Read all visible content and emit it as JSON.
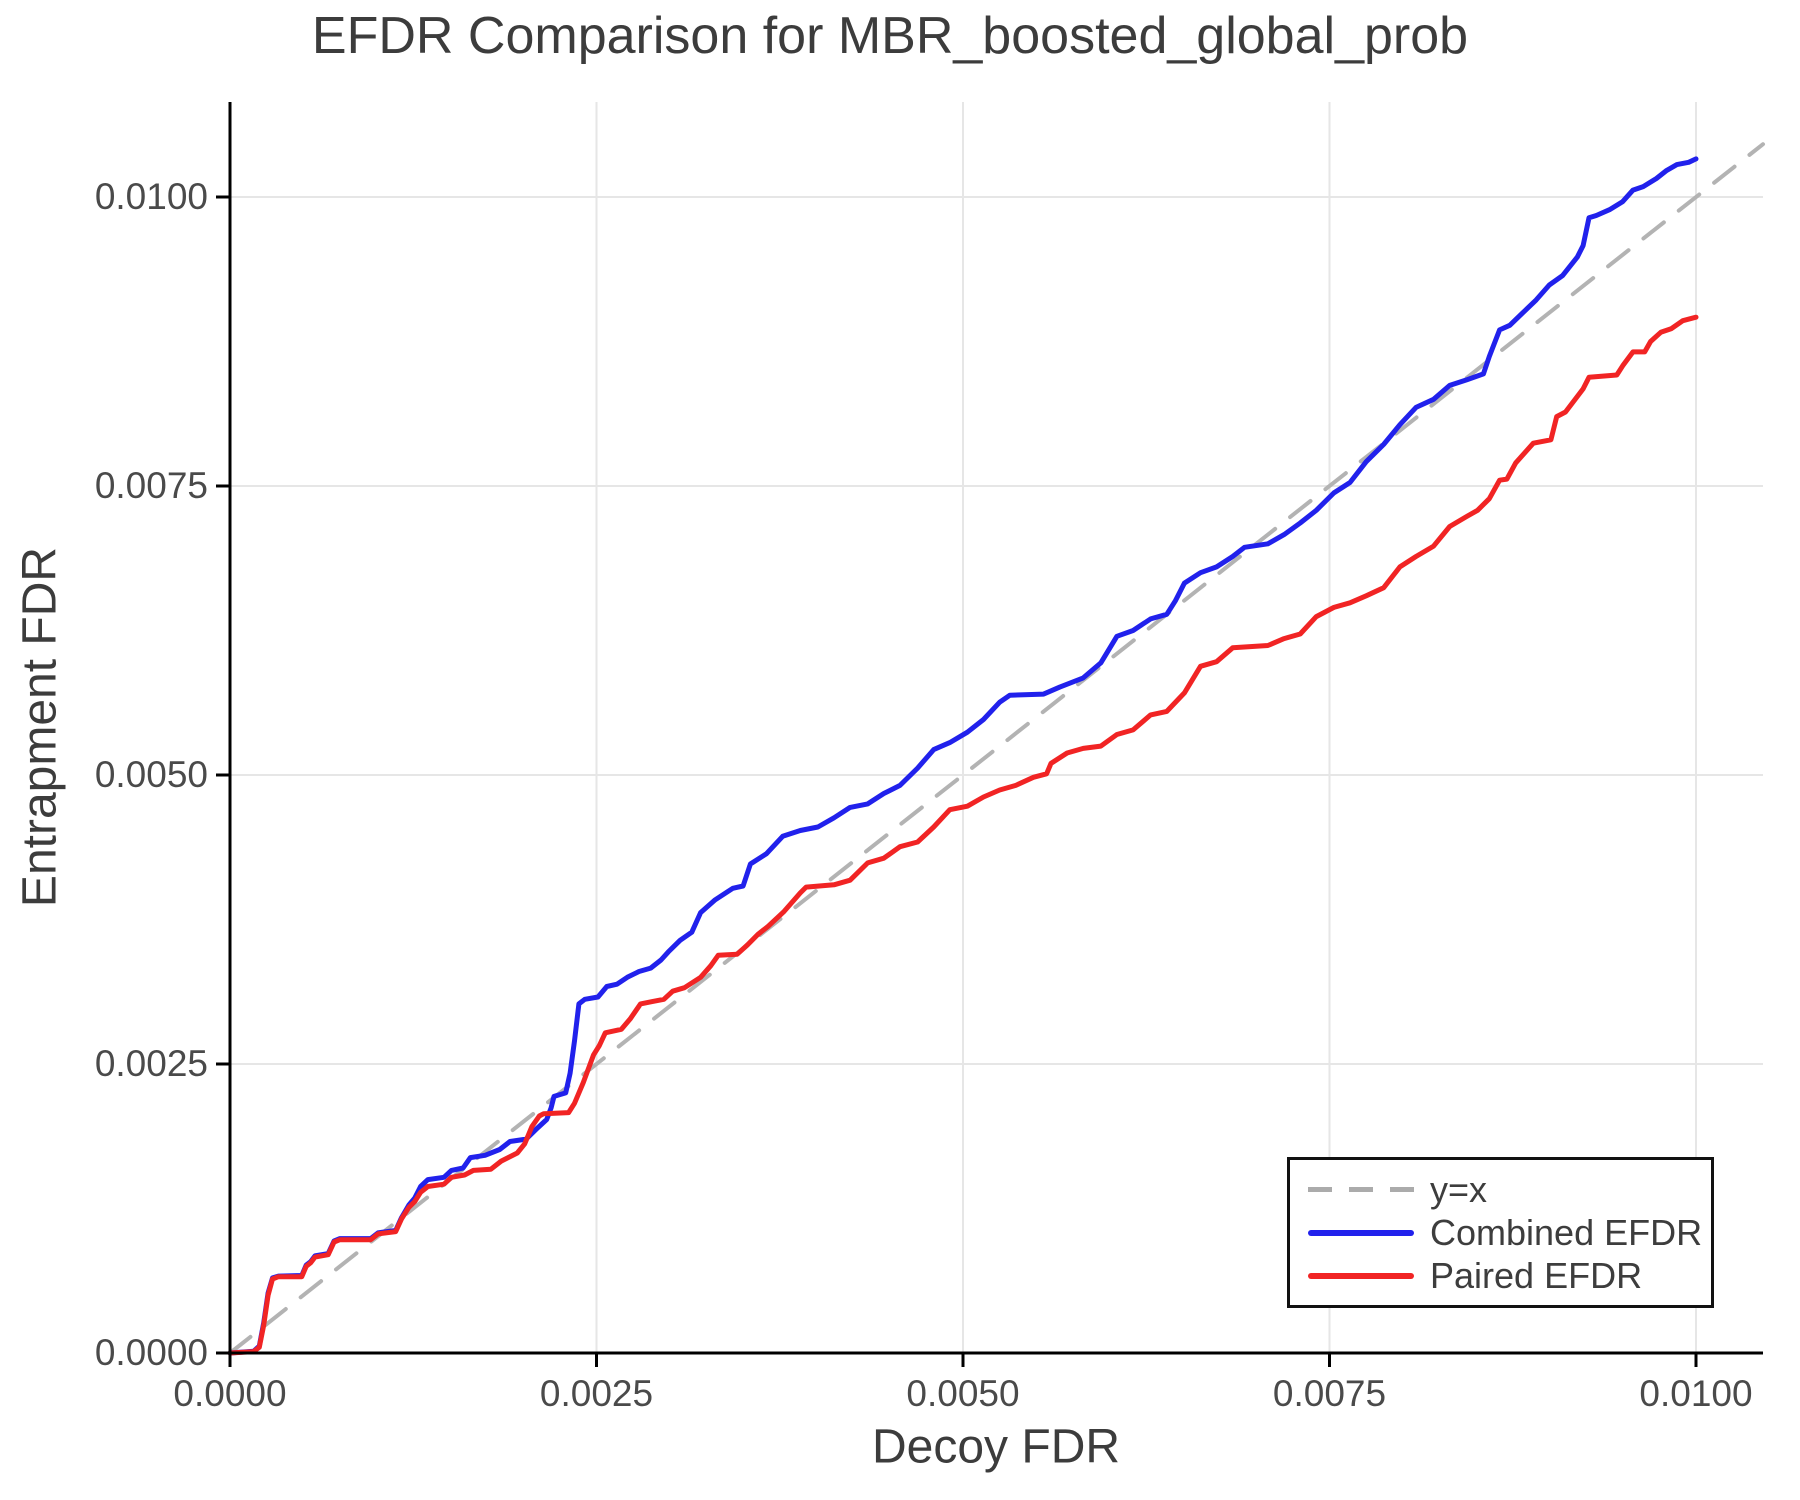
{
  "title": "EFDR Comparison for MBR_boosted_global_prob",
  "axes": {
    "xlabel": "Decoy FDR",
    "ylabel": "Entrapment FDR"
  },
  "legend": {
    "items": [
      {
        "label": "y=x",
        "color": "#ababab",
        "style": "dashed"
      },
      {
        "label": "Combined EFDR",
        "color": "#2121ec",
        "style": "solid"
      },
      {
        "label": "Paired EFDR",
        "color": "#f12424",
        "style": "solid"
      }
    ]
  },
  "colors": {
    "blue_line": "#2121ec",
    "red_line": "#f12424",
    "identity_line": "#b3b3b3",
    "grid": "#e6e6e6",
    "spine": "#000000",
    "title_text": "#3c3c3c",
    "tick_text": "#4a4a4a"
  },
  "chart_data": {
    "type": "line",
    "title": "EFDR Comparison for MBR_boosted_global_prob",
    "xlabel": "Decoy FDR",
    "ylabel": "Entrapment FDR",
    "xlim": [
      0,
      0.01046
    ],
    "ylim": [
      0,
      0.01082
    ],
    "grid": true,
    "legend_position": "bottom-right",
    "x_ticks": {
      "values": [
        0,
        0.0025,
        0.005,
        0.0075,
        0.01
      ],
      "labels": [
        "0.0000",
        "0.0025",
        "0.0050",
        "0.0075",
        "0.0100"
      ]
    },
    "y_ticks": {
      "values": [
        0,
        0.0025,
        0.005,
        0.0075,
        0.01
      ],
      "labels": [
        "0.0000",
        "0.0025",
        "0.0050",
        "0.0075",
        "0.0100"
      ]
    },
    "series": [
      {
        "name": "y=x",
        "style": "dashed",
        "color": "#b3b3b3",
        "points": [
          [
            0,
            0
          ],
          [
            0.010457,
            0.010457
          ]
        ]
      },
      {
        "name": "Combined EFDR",
        "style": "solid",
        "color": "#2121ec",
        "points": [
          [
            0,
            0
          ],
          [
            0.00016,
            1.5e-05
          ],
          [
            0.0002,
            6e-05
          ],
          [
            0.00023,
            0.00026
          ],
          [
            0.00026,
            0.00052
          ],
          [
            0.00029,
            0.00065
          ],
          [
            0.00033,
            0.000665
          ],
          [
            0.00049,
            0.00067
          ],
          [
            0.00052,
            0.00076
          ],
          [
            0.00055,
            0.00079
          ],
          [
            0.00058,
            0.00084
          ],
          [
            0.00067,
            0.00086
          ],
          [
            0.00071,
            0.00097
          ],
          [
            0.00075,
            0.00099
          ],
          [
            0.00096,
            0.00099
          ],
          [
            0.00101,
            0.00104
          ],
          [
            0.00113,
            0.00106
          ],
          [
            0.00117,
            0.00117
          ],
          [
            0.00122,
            0.00128
          ],
          [
            0.00126,
            0.00134
          ],
          [
            0.0013,
            0.00144
          ],
          [
            0.00135,
            0.0015
          ],
          [
            0.00146,
            0.00152
          ],
          [
            0.00151,
            0.00158
          ],
          [
            0.00159,
            0.0016
          ],
          [
            0.00164,
            0.00169
          ],
          [
            0.00174,
            0.00171
          ],
          [
            0.00184,
            0.00176
          ],
          [
            0.00191,
            0.00183
          ],
          [
            0.00202,
            0.00185
          ],
          [
            0.0021,
            0.00195
          ],
          [
            0.00216,
            0.00202
          ],
          [
            0.00219,
            0.00212
          ],
          [
            0.00221,
            0.00222
          ],
          [
            0.00229,
            0.00225
          ],
          [
            0.00232,
            0.00242
          ],
          [
            0.00235,
            0.0027
          ],
          [
            0.00238,
            0.00302
          ],
          [
            0.00242,
            0.00306
          ],
          [
            0.00251,
            0.00308
          ],
          [
            0.00257,
            0.00317
          ],
          [
            0.00264,
            0.00319
          ],
          [
            0.00271,
            0.00325
          ],
          [
            0.00279,
            0.0033
          ],
          [
            0.00287,
            0.00333
          ],
          [
            0.00294,
            0.0034
          ],
          [
            0.00299,
            0.00347
          ],
          [
            0.00307,
            0.00357
          ],
          [
            0.00315,
            0.00364
          ],
          [
            0.00321,
            0.00381
          ],
          [
            0.00331,
            0.00392
          ],
          [
            0.00343,
            0.00402
          ],
          [
            0.0035,
            0.00404
          ],
          [
            0.00355,
            0.00423
          ],
          [
            0.00366,
            0.00432
          ],
          [
            0.00377,
            0.00447
          ],
          [
            0.00389,
            0.00452
          ],
          [
            0.00401,
            0.00455
          ],
          [
            0.00412,
            0.00463
          ],
          [
            0.00423,
            0.00472
          ],
          [
            0.00435,
            0.00475
          ],
          [
            0.00446,
            0.00484
          ],
          [
            0.00457,
            0.00491
          ],
          [
            0.00469,
            0.00506
          ],
          [
            0.0048,
            0.00522
          ],
          [
            0.00491,
            0.00528
          ],
          [
            0.00503,
            0.00537
          ],
          [
            0.00514,
            0.00548
          ],
          [
            0.00525,
            0.00563
          ],
          [
            0.00532,
            0.00569
          ],
          [
            0.00555,
            0.0057
          ],
          [
            0.00566,
            0.00576
          ],
          [
            0.00582,
            0.00584
          ],
          [
            0.00594,
            0.00597
          ],
          [
            0.00605,
            0.0062
          ],
          [
            0.00616,
            0.00625
          ],
          [
            0.00628,
            0.00635
          ],
          [
            0.00639,
            0.00639
          ],
          [
            0.00645,
            0.00651
          ],
          [
            0.00651,
            0.00666
          ],
          [
            0.00662,
            0.00675
          ],
          [
            0.00673,
            0.0068
          ],
          [
            0.00684,
            0.00689
          ],
          [
            0.00692,
            0.00697
          ],
          [
            0.00708,
            0.007
          ],
          [
            0.00719,
            0.00708
          ],
          [
            0.0073,
            0.00718
          ],
          [
            0.00741,
            0.00729
          ],
          [
            0.00753,
            0.00744
          ],
          [
            0.00764,
            0.00753
          ],
          [
            0.00775,
            0.00771
          ],
          [
            0.00787,
            0.00786
          ],
          [
            0.00798,
            0.00803
          ],
          [
            0.00809,
            0.00818
          ],
          [
            0.00821,
            0.00825
          ],
          [
            0.00832,
            0.00837
          ],
          [
            0.00844,
            0.00842
          ],
          [
            0.00855,
            0.00847
          ],
          [
            0.00859,
            0.00862
          ],
          [
            0.00866,
            0.00885
          ],
          [
            0.00873,
            0.00889
          ],
          [
            0.00882,
            0.009
          ],
          [
            0.00891,
            0.00911
          ],
          [
            0.009,
            0.00924
          ],
          [
            0.00909,
            0.00932
          ],
          [
            0.00919,
            0.00948
          ],
          [
            0.00923,
            0.00958
          ],
          [
            0.00927,
            0.00982
          ],
          [
            0.00932,
            0.00984
          ],
          [
            0.00941,
            0.00989
          ],
          [
            0.0095,
            0.00996
          ],
          [
            0.00957,
            0.01006
          ],
          [
            0.00964,
            0.01009
          ],
          [
            0.00973,
            0.01016
          ],
          [
            0.0098,
            0.01023
          ],
          [
            0.00987,
            0.01028
          ],
          [
            0.00995,
            0.0103
          ],
          [
            0.01,
            0.01033
          ]
        ]
      },
      {
        "name": "Paired EFDR",
        "style": "solid",
        "color": "#f12424",
        "points": [
          [
            0,
            0
          ],
          [
            0.00016,
            1.2e-05
          ],
          [
            0.0002,
            5e-05
          ],
          [
            0.00023,
            0.00024
          ],
          [
            0.00026,
            0.0005
          ],
          [
            0.00029,
            0.00064
          ],
          [
            0.00033,
            0.00066
          ],
          [
            0.00049,
            0.00066
          ],
          [
            0.00052,
            0.00075
          ],
          [
            0.00055,
            0.00078
          ],
          [
            0.00058,
            0.00083
          ],
          [
            0.00067,
            0.00085
          ],
          [
            0.00071,
            0.00096
          ],
          [
            0.00075,
            0.00098
          ],
          [
            0.00096,
            0.00098
          ],
          [
            0.00101,
            0.00103
          ],
          [
            0.00113,
            0.00105
          ],
          [
            0.00117,
            0.00116
          ],
          [
            0.00122,
            0.00126
          ],
          [
            0.00126,
            0.00131
          ],
          [
            0.0013,
            0.00139
          ],
          [
            0.00135,
            0.00144
          ],
          [
            0.00146,
            0.00146
          ],
          [
            0.00151,
            0.00152
          ],
          [
            0.0016,
            0.00154
          ],
          [
            0.00166,
            0.00158
          ],
          [
            0.00178,
            0.00159
          ],
          [
            0.00185,
            0.00166
          ],
          [
            0.00196,
            0.00173
          ],
          [
            0.00201,
            0.00181
          ],
          [
            0.00206,
            0.00196
          ],
          [
            0.00211,
            0.00205
          ],
          [
            0.00214,
            0.00207
          ],
          [
            0.00231,
            0.00208
          ],
          [
            0.00235,
            0.00216
          ],
          [
            0.00241,
            0.00234
          ],
          [
            0.00248,
            0.00258
          ],
          [
            0.00252,
            0.00266
          ],
          [
            0.00256,
            0.00277
          ],
          [
            0.00267,
            0.0028
          ],
          [
            0.00273,
            0.00289
          ],
          [
            0.0028,
            0.00302
          ],
          [
            0.00288,
            0.00304
          ],
          [
            0.00296,
            0.00306
          ],
          [
            0.00302,
            0.00313
          ],
          [
            0.0031,
            0.00316
          ],
          [
            0.00321,
            0.00325
          ],
          [
            0.00328,
            0.00335
          ],
          [
            0.00333,
            0.00344
          ],
          [
            0.00346,
            0.00345
          ],
          [
            0.00353,
            0.00353
          ],
          [
            0.0036,
            0.00362
          ],
          [
            0.00367,
            0.00369
          ],
          [
            0.00378,
            0.00382
          ],
          [
            0.00389,
            0.00398
          ],
          [
            0.00393,
            0.00403
          ],
          [
            0.00412,
            0.00405
          ],
          [
            0.00423,
            0.00409
          ],
          [
            0.00435,
            0.00424
          ],
          [
            0.00446,
            0.00428
          ],
          [
            0.00457,
            0.00438
          ],
          [
            0.00469,
            0.00442
          ],
          [
            0.0048,
            0.00455
          ],
          [
            0.00491,
            0.0047
          ],
          [
            0.00503,
            0.00473
          ],
          [
            0.00514,
            0.00481
          ],
          [
            0.00525,
            0.00487
          ],
          [
            0.00536,
            0.00491
          ],
          [
            0.00548,
            0.00498
          ],
          [
            0.00557,
            0.00501
          ],
          [
            0.0056,
            0.0051
          ],
          [
            0.00571,
            0.00519
          ],
          [
            0.00582,
            0.00523
          ],
          [
            0.00594,
            0.00525
          ],
          [
            0.00605,
            0.00535
          ],
          [
            0.00616,
            0.00539
          ],
          [
            0.00628,
            0.00552
          ],
          [
            0.00639,
            0.00555
          ],
          [
            0.00651,
            0.00571
          ],
          [
            0.00662,
            0.00594
          ],
          [
            0.00673,
            0.00598
          ],
          [
            0.00684,
            0.0061
          ],
          [
            0.00708,
            0.00612
          ],
          [
            0.00719,
            0.00618
          ],
          [
            0.0073,
            0.00622
          ],
          [
            0.00741,
            0.00637
          ],
          [
            0.00753,
            0.00645
          ],
          [
            0.00764,
            0.00649
          ],
          [
            0.00775,
            0.00655
          ],
          [
            0.00787,
            0.00662
          ],
          [
            0.00798,
            0.0068
          ],
          [
            0.00809,
            0.00689
          ],
          [
            0.00821,
            0.00698
          ],
          [
            0.00832,
            0.00715
          ],
          [
            0.00844,
            0.00724
          ],
          [
            0.00851,
            0.00729
          ],
          [
            0.00859,
            0.00739
          ],
          [
            0.00866,
            0.00755
          ],
          [
            0.00871,
            0.00756
          ],
          [
            0.00877,
            0.0077
          ],
          [
            0.00889,
            0.00787
          ],
          [
            0.00901,
            0.0079
          ],
          [
            0.00905,
            0.0081
          ],
          [
            0.00911,
            0.00814
          ],
          [
            0.00923,
            0.00834
          ],
          [
            0.00927,
            0.00844
          ],
          [
            0.00946,
            0.00846
          ],
          [
            0.0095,
            0.00854
          ],
          [
            0.00957,
            0.00866
          ],
          [
            0.00965,
            0.00866
          ],
          [
            0.00969,
            0.00875
          ],
          [
            0.00976,
            0.00883
          ],
          [
            0.00983,
            0.00886
          ],
          [
            0.00991,
            0.00893
          ],
          [
            0.01,
            0.00896
          ]
        ]
      }
    ]
  }
}
